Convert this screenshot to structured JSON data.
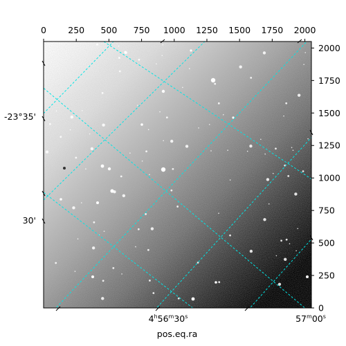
{
  "chart_data": {
    "type": "image",
    "xlabel": "pos.eq.ra",
    "top_axis": {
      "ticks": [
        0,
        250,
        500,
        750,
        1000,
        1250,
        1500,
        1750,
        2000
      ],
      "labels": [
        "0",
        "250",
        "500",
        "750",
        "1000",
        "1250",
        "1500",
        "1750",
        "2000"
      ],
      "range": [
        0,
        2050
      ]
    },
    "right_axis": {
      "ticks": [
        0,
        250,
        500,
        750,
        1000,
        1250,
        1500,
        1750,
        2000
      ],
      "labels": [
        "0",
        "250",
        "500",
        "750",
        "1000",
        "1250",
        "1500",
        "1750",
        "2000"
      ],
      "range": [
        0,
        2050
      ]
    },
    "ra_labels": [
      {
        "main": "4",
        "unit_h": "h",
        "min": "56",
        "unit_m": "m",
        "sec": "30",
        "unit_s": "s",
        "value": "4h56m30s"
      },
      {
        "main": "57",
        "unit_m": "m",
        "sec": "00",
        "unit_s": "s",
        "value": "57m00s"
      }
    ],
    "dec_labels": [
      "-23°35'",
      "30'"
    ],
    "grid": true,
    "grid_color": "#00e5e5",
    "colormap": "gray"
  }
}
